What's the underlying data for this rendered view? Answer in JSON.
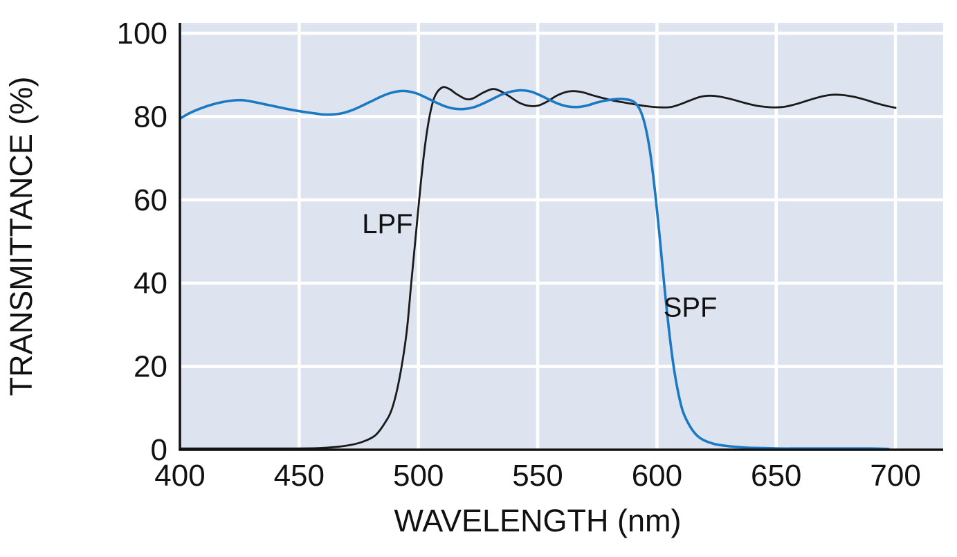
{
  "page": {
    "background": "#ffffff"
  },
  "chart_data": {
    "type": "line",
    "title": "",
    "xlabel": "WAVELENGTH (nm)",
    "ylabel": "TRANSMITTANCE (%)",
    "xlim": [
      400,
      700
    ],
    "ylim": [
      0,
      100
    ],
    "xticks": [
      400,
      450,
      500,
      550,
      600,
      650,
      700
    ],
    "yticks": [
      0,
      20,
      40,
      60,
      80,
      100
    ],
    "grid": true,
    "legend_position": "inline-annotations",
    "plot_background": "#dde4ef",
    "grid_color": "#ffffff",
    "axis_color": "#111111",
    "series": [
      {
        "name": "LPF",
        "color": "#1a1a1a",
        "label": {
          "text": "LPF",
          "x": 487,
          "y": 52
        },
        "points": [
          [
            400,
            0.3
          ],
          [
            425,
            0.3
          ],
          [
            445,
            0.3
          ],
          [
            458,
            0.4
          ],
          [
            466,
            0.7
          ],
          [
            472,
            1.2
          ],
          [
            477,
            2
          ],
          [
            482,
            3.5
          ],
          [
            486,
            6.5
          ],
          [
            489,
            10
          ],
          [
            492,
            17
          ],
          [
            495,
            28
          ],
          [
            497,
            40
          ],
          [
            499,
            52
          ],
          [
            501,
            64
          ],
          [
            503,
            74
          ],
          [
            505,
            81
          ],
          [
            507,
            85
          ],
          [
            510,
            87
          ],
          [
            513,
            86.6
          ],
          [
            516,
            85.4
          ],
          [
            520,
            84.2
          ],
          [
            523,
            84.4
          ],
          [
            527,
            85.7
          ],
          [
            531,
            86.6
          ],
          [
            534,
            86.2
          ],
          [
            538,
            84.9
          ],
          [
            542,
            83.4
          ],
          [
            546,
            82.6
          ],
          [
            550,
            82.6
          ],
          [
            554,
            83.6
          ],
          [
            558,
            85
          ],
          [
            562,
            85.9
          ],
          [
            565,
            86.1
          ],
          [
            569,
            85.8
          ],
          [
            573,
            85.1
          ],
          [
            577,
            84.5
          ],
          [
            582,
            83.8
          ],
          [
            587,
            83.3
          ],
          [
            592,
            82.8
          ],
          [
            597,
            82.4
          ],
          [
            602,
            82.2
          ],
          [
            606,
            82.3
          ],
          [
            610,
            83
          ],
          [
            614,
            83.9
          ],
          [
            618,
            84.7
          ],
          [
            622,
            85
          ],
          [
            626,
            84.8
          ],
          [
            631,
            84.2
          ],
          [
            636,
            83.4
          ],
          [
            641,
            82.7
          ],
          [
            646,
            82.3
          ],
          [
            650,
            82.2
          ],
          [
            654,
            82.4
          ],
          [
            659,
            83.1
          ],
          [
            664,
            84
          ],
          [
            669,
            84.8
          ],
          [
            673,
            85.2
          ],
          [
            677,
            85.2
          ],
          [
            682,
            84.8
          ],
          [
            687,
            84.1
          ],
          [
            692,
            83.2
          ],
          [
            696,
            82.6
          ],
          [
            700,
            82.1
          ]
        ]
      },
      {
        "name": "SPF",
        "color": "#1b79c3",
        "label": {
          "text": "SPF",
          "x": 614,
          "y": 32
        },
        "points": [
          [
            400,
            79.5
          ],
          [
            404,
            80.8
          ],
          [
            408,
            81.8
          ],
          [
            413,
            82.8
          ],
          [
            418,
            83.5
          ],
          [
            423,
            83.9
          ],
          [
            427,
            83.9
          ],
          [
            431,
            83.5
          ],
          [
            436,
            82.9
          ],
          [
            441,
            82.3
          ],
          [
            446,
            81.7
          ],
          [
            451,
            81.2
          ],
          [
            456,
            80.8
          ],
          [
            460,
            80.5
          ],
          [
            464,
            80.5
          ],
          [
            468,
            80.8
          ],
          [
            472,
            81.5
          ],
          [
            476,
            82.5
          ],
          [
            480,
            83.6
          ],
          [
            484,
            84.7
          ],
          [
            488,
            85.6
          ],
          [
            492,
            86.1
          ],
          [
            495,
            86.1
          ],
          [
            499,
            85.6
          ],
          [
            503,
            84.6
          ],
          [
            507,
            83.5
          ],
          [
            511,
            82.5
          ],
          [
            515,
            81.9
          ],
          [
            519,
            81.8
          ],
          [
            523,
            82.2
          ],
          [
            527,
            83.1
          ],
          [
            531,
            84.2
          ],
          [
            535,
            85.3
          ],
          [
            539,
            86
          ],
          [
            543,
            86.3
          ],
          [
            547,
            86
          ],
          [
            551,
            85.1
          ],
          [
            555,
            84
          ],
          [
            559,
            83
          ],
          [
            563,
            82.4
          ],
          [
            567,
            82.3
          ],
          [
            571,
            82.7
          ],
          [
            575,
            83.4
          ],
          [
            579,
            83.9
          ],
          [
            583,
            84.2
          ],
          [
            586,
            84.2
          ],
          [
            589,
            83.9
          ],
          [
            591,
            83.2
          ],
          [
            593,
            81.5
          ],
          [
            595,
            78
          ],
          [
            597,
            72
          ],
          [
            599,
            63
          ],
          [
            601,
            52
          ],
          [
            603,
            40
          ],
          [
            605,
            29
          ],
          [
            607,
            20
          ],
          [
            609,
            13.5
          ],
          [
            611,
            9
          ],
          [
            614,
            5.5
          ],
          [
            617,
            3.3
          ],
          [
            620,
            2.2
          ],
          [
            624,
            1.4
          ],
          [
            628,
            1
          ],
          [
            633,
            0.7
          ],
          [
            638,
            0.5
          ],
          [
            645,
            0.4
          ],
          [
            652,
            0.3
          ],
          [
            660,
            0.3
          ],
          [
            670,
            0.3
          ],
          [
            680,
            0.3
          ],
          [
            690,
            0.3
          ],
          [
            697,
            0.2
          ]
        ]
      }
    ]
  }
}
